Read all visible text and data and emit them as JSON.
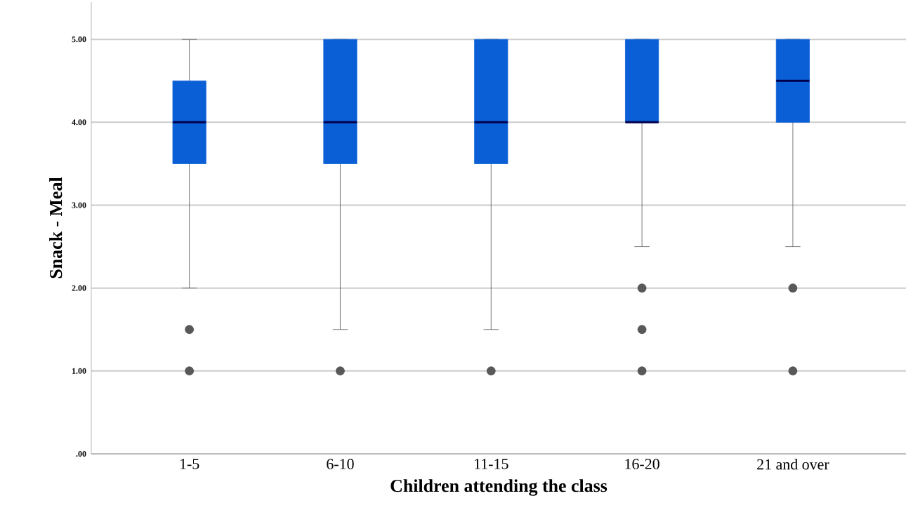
{
  "chart_data": {
    "type": "box",
    "xlabel": "Children attending the class",
    "ylabel": "Snack - Meal",
    "categories": [
      "1-5",
      "6-10",
      "11-15",
      "16-20",
      "21 and over"
    ],
    "color": "#0a5fd6",
    "boxes": [
      {
        "low": 2,
        "q1": 3.5,
        "median": 4,
        "q3": 4.5,
        "high": 5,
        "outliers": [
          1.5,
          1
        ]
      },
      {
        "low": 1.5,
        "q1": 3.5,
        "median": 4,
        "q3": 5,
        "high": 5,
        "outliers": [
          1
        ]
      },
      {
        "low": 1.5,
        "q1": 3.5,
        "median": 4,
        "q3": 5,
        "high": 5,
        "outliers": [
          1
        ]
      },
      {
        "low": 2.5,
        "q1": 4,
        "median": 4,
        "q3": 5,
        "high": 5,
        "outliers": [
          2,
          1.5,
          1
        ]
      },
      {
        "low": 2.5,
        "q1": 4,
        "median": 4.5,
        "q3": 5,
        "high": 5,
        "outliers": [
          2,
          1
        ]
      }
    ],
    "ylim": [
      0,
      5.45
    ],
    "yticks": [
      {
        "value": 0,
        "label": ".00"
      },
      {
        "value": 1,
        "label": "1.00"
      },
      {
        "value": 2,
        "label": "2.00"
      },
      {
        "value": 3,
        "label": "3.00"
      },
      {
        "value": 4,
        "label": "4.00"
      },
      {
        "value": 5,
        "label": "5.00"
      }
    ],
    "grid": "y"
  }
}
